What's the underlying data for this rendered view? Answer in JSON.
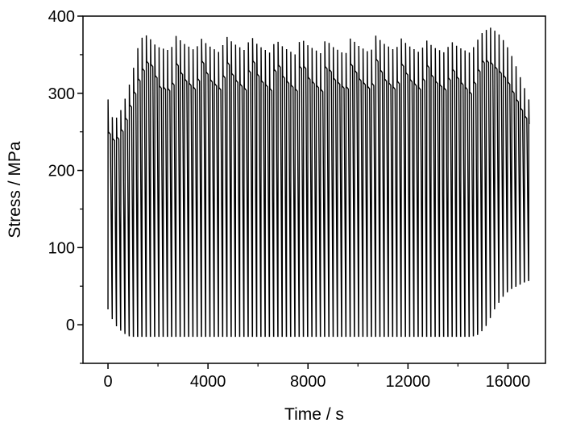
{
  "chart_data": {
    "type": "line",
    "title": "",
    "xlabel": "Time / s",
    "ylabel": "Stress / MPa",
    "xlim": [
      -1000,
      17500
    ],
    "ylim": [
      -50,
      400
    ],
    "xticks": [
      0,
      4000,
      8000,
      12000,
      16000
    ],
    "yticks": [
      0,
      100,
      200,
      300,
      400
    ],
    "xtick_labels": [
      "0",
      "4000",
      "8000",
      "12000",
      "16000"
    ],
    "ytick_labels": [
      "0",
      "100",
      "200",
      "300",
      "400"
    ],
    "grid": false,
    "legend": "none",
    "line_color": "#000000",
    "cycle_period_s": 170,
    "series": [
      {
        "name": "",
        "envelope": {
          "t": [
            0,
            200,
            400,
            600,
            800,
            1000,
            1200,
            1400,
            1600,
            1800,
            2000,
            2500,
            2700,
            3000,
            3500,
            3700,
            4000,
            4500,
            4700,
            5000,
            5500,
            5700,
            6000,
            6500,
            6700,
            7000,
            7500,
            7700,
            8000,
            8500,
            8700,
            9000,
            9500,
            9700,
            10000,
            10500,
            10700,
            11000,
            11500,
            11700,
            12000,
            12500,
            12700,
            13000,
            13500,
            13700,
            14000,
            14500,
            14700,
            15000,
            15300,
            15600,
            15900,
            16200,
            16500,
            16800,
            16900
          ],
          "peak": [
            292,
            265,
            270,
            285,
            305,
            330,
            360,
            375,
            375,
            365,
            360,
            355,
            375,
            365,
            355,
            372,
            362,
            352,
            375,
            365,
            355,
            375,
            362,
            352,
            370,
            360,
            350,
            372,
            362,
            352,
            370,
            360,
            350,
            372,
            362,
            352,
            375,
            365,
            355,
            372,
            362,
            352,
            370,
            360,
            352,
            368,
            360,
            352,
            365,
            380,
            385,
            378,
            365,
            345,
            320,
            295,
            285
          ],
          "mean": [
            250,
            240,
            245,
            260,
            280,
            300,
            320,
            335,
            345,
            330,
            310,
            305,
            340,
            320,
            305,
            345,
            320,
            305,
            345,
            320,
            305,
            350,
            320,
            305,
            345,
            320,
            305,
            345,
            320,
            305,
            340,
            320,
            305,
            340,
            320,
            305,
            345,
            320,
            305,
            340,
            320,
            305,
            340,
            318,
            305,
            335,
            318,
            300,
            325,
            345,
            340,
            330,
            320,
            300,
            280,
            262,
            255
          ],
          "valley": [
            20,
            5,
            -5,
            -10,
            -15,
            -15,
            -15,
            -15,
            -15,
            -15,
            -15,
            -15,
            -15,
            -15,
            -15,
            -15,
            -15,
            -15,
            -15,
            -15,
            -15,
            -15,
            -15,
            -15,
            -15,
            -15,
            -15,
            -15,
            -15,
            -15,
            -15,
            -15,
            -15,
            -15,
            -15,
            -15,
            -15,
            -15,
            -15,
            -15,
            -15,
            -15,
            -15,
            -15,
            -15,
            -15,
            -15,
            -15,
            -12,
            0,
            20,
            35,
            45,
            50,
            55,
            58,
            60
          ]
        }
      }
    ]
  }
}
